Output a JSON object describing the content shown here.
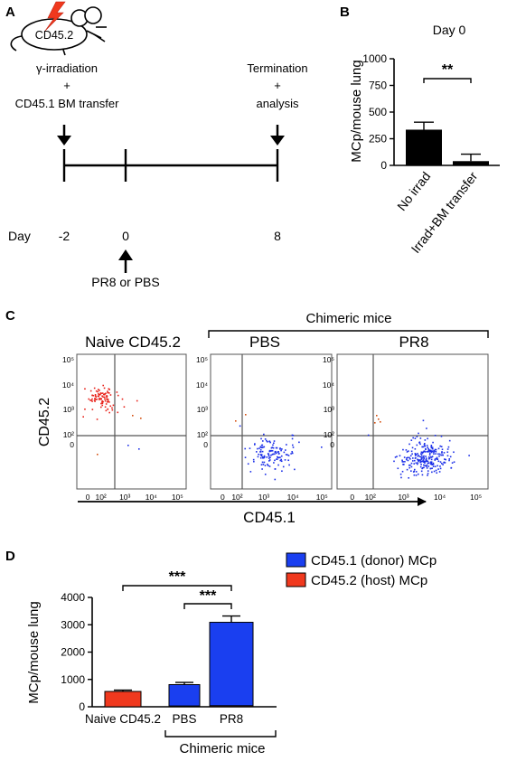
{
  "panel_labels": {
    "a": "A",
    "b": "B",
    "c": "C",
    "d": "D"
  },
  "panel_a": {
    "mouse_label": "CD45.2",
    "treatment_line1": "γ-irradiation",
    "treatment_plus": "+",
    "treatment_line2": "CD45.1 BM transfer",
    "end_line1": "Termination",
    "end_plus": "+",
    "end_line2": "analysis",
    "day_label": "Day",
    "days": [
      "-2",
      "0",
      "8"
    ],
    "infection_label": "PR8 or PBS"
  },
  "chart_data": [
    {
      "id": "panel-b",
      "type": "bar",
      "title": "Day 0",
      "ylabel": "MCp/mouse lung",
      "ylim": [
        0,
        1000
      ],
      "yticks": [
        0,
        250,
        500,
        750,
        1000
      ],
      "categories": [
        "No irrad",
        "Irrad+BM transfer"
      ],
      "values": [
        335,
        40
      ],
      "errors": [
        70,
        65
      ],
      "colors": [
        "#000000",
        "#000000"
      ],
      "significance": "**"
    },
    {
      "id": "panel-d",
      "type": "bar",
      "ylabel": "MCp/mouse lung",
      "ylim": [
        0,
        4000
      ],
      "yticks": [
        0,
        1000,
        2000,
        3000,
        4000
      ],
      "categories": [
        "Naive CD45.2",
        "PBS",
        "PR8"
      ],
      "group_label": "Chimeric mice",
      "series": [
        {
          "name": "CD45.1 (donor) MCp",
          "color": "#1a3ff0",
          "values": [
            0,
            780,
            3050
          ],
          "errors": [
            0,
            80,
            230
          ]
        },
        {
          "name": "CD45.2 (host) MCp",
          "color": "#f0391e",
          "values": [
            560,
            30,
            40
          ],
          "errors": [
            50,
            0,
            0
          ]
        }
      ],
      "significance": [
        "***",
        "***"
      ]
    }
  ],
  "panel_c": {
    "titles": [
      "Naive CD45.2",
      "PBS",
      "PR8"
    ],
    "group_label": "Chimeric mice",
    "y_axis_label": "CD45.2",
    "x_axis_label": "CD45.1",
    "y_ticks": [
      "10⁵",
      "10⁴",
      "10³",
      "10²",
      "0"
    ],
    "x_ticks": [
      "0",
      "10²",
      "10³",
      "10⁴",
      "10⁵"
    ]
  }
}
